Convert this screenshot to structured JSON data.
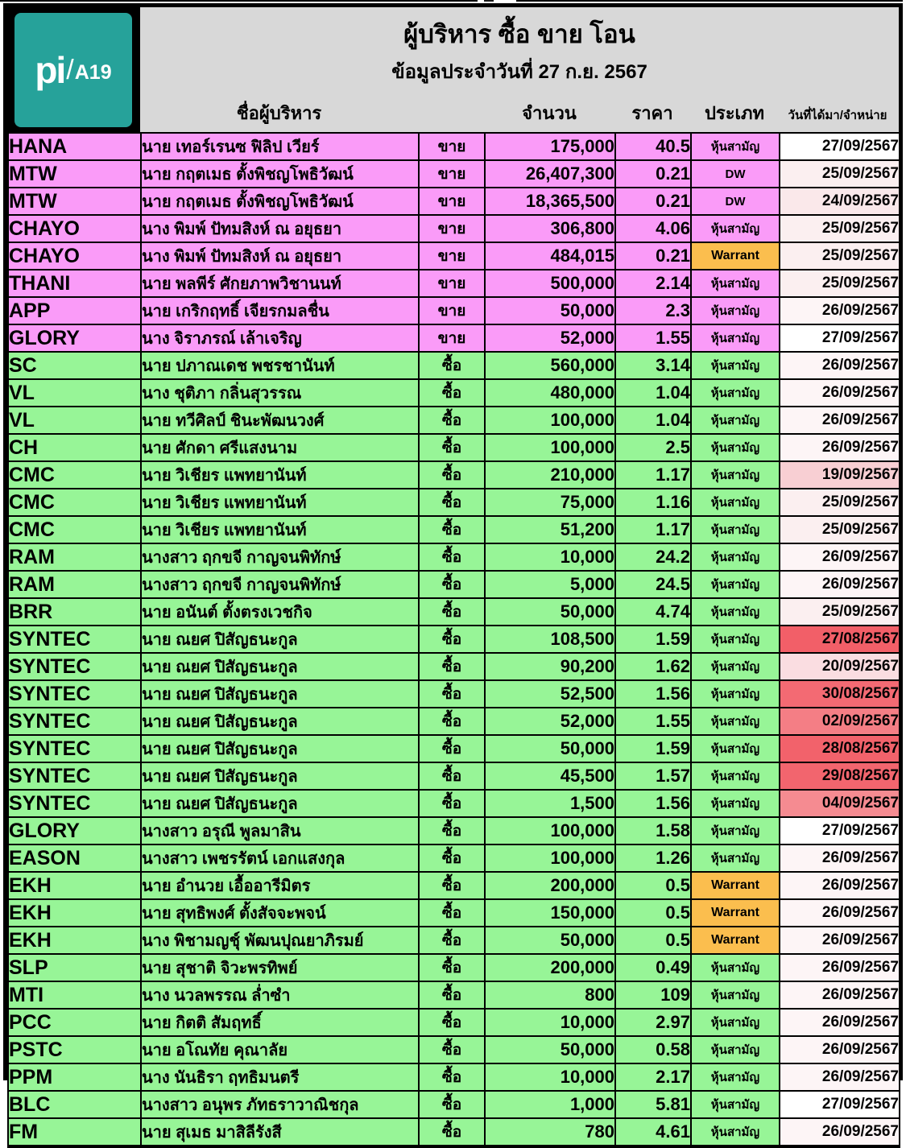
{
  "logo": {
    "brand": "pi",
    "slash": "/",
    "suffix": "A19",
    "bg_color": "#26A29A"
  },
  "header": {
    "title": "ผู้บริหาร ซื้อ ขาย โอน",
    "subtitle": "ข้อมูลประจำวันที่ 27 ก.ย. 2567",
    "columns": {
      "name": "ชื่อผู้บริหาร",
      "amount": "จำนวน",
      "price": "ราคา",
      "type": "ประเภท",
      "date": "วันที่ได้มา/จำหน่าย"
    }
  },
  "colors": {
    "sell_row": "#FA9BF8",
    "buy_row": "#97F597",
    "warrant_bg": "#FBBE4E",
    "header_bg": "#D8D8D8",
    "logo_teal": "#26A29A"
  },
  "rows": [
    {
      "symbol": "HANA",
      "name": "นาย เทอร์เรนซ ฟิลิป เวียร์",
      "action": "ขาย",
      "side": "sell",
      "amount": "175,000",
      "price": "40.5",
      "type": "หุ้นสามัญ",
      "date": "27/09/2567",
      "date_bg": "#FFFFFF"
    },
    {
      "symbol": "MTW",
      "name": "นาย กฤตเมธ ตั้งพิชญโพธิวัฒน์",
      "action": "ขาย",
      "side": "sell",
      "amount": "26,407,300",
      "price": "0.21",
      "type": "DW",
      "date": "25/09/2567",
      "date_bg": "#FBEFF0"
    },
    {
      "symbol": "MTW",
      "name": "นาย กฤตเมธ ตั้งพิชญโพธิวัฒน์",
      "action": "ขาย",
      "side": "sell",
      "amount": "18,365,500",
      "price": "0.21",
      "type": "DW",
      "date": "24/09/2567",
      "date_bg": "#FAE8EA"
    },
    {
      "symbol": "CHAYO",
      "name": "นาง พิมพ์ ปัทมสิงห์ ณ อยุธยา",
      "action": "ขาย",
      "side": "sell",
      "amount": "306,800",
      "price": "4.06",
      "type": "หุ้นสามัญ",
      "date": "25/09/2567",
      "date_bg": "#FBEFF0"
    },
    {
      "symbol": "CHAYO",
      "name": "นาง พิมพ์ ปัทมสิงห์ ณ อยุธยา",
      "action": "ขาย",
      "side": "sell",
      "amount": "484,015",
      "price": "0.21",
      "type": "Warrant",
      "date": "25/09/2567",
      "date_bg": "#FBEFF0"
    },
    {
      "symbol": "THANI",
      "name": "นาย พลพีร์ ศักยภาพวิชานนท์",
      "action": "ขาย",
      "side": "sell",
      "amount": "500,000",
      "price": "2.14",
      "type": "หุ้นสามัญ",
      "date": "25/09/2567",
      "date_bg": "#FBEFF0"
    },
    {
      "symbol": "APP",
      "name": "นาย เกริกฤทธิ์ เจียรกมลชื่น",
      "action": "ขาย",
      "side": "sell",
      "amount": "50,000",
      "price": "2.3",
      "type": "หุ้นสามัญ",
      "date": "26/09/2567",
      "date_bg": "#FDF5F6"
    },
    {
      "symbol": "GLORY",
      "name": "นาง จิราภรณ์ เล้าเจริญ",
      "action": "ขาย",
      "side": "sell",
      "amount": "52,000",
      "price": "1.55",
      "type": "หุ้นสามัญ",
      "date": "27/09/2567",
      "date_bg": "#FFFFFF"
    },
    {
      "symbol": "SC",
      "name": "นาย ปภาณเดช พชรชานันท์",
      "action": "ซื้อ",
      "side": "buy",
      "amount": "560,000",
      "price": "3.14",
      "type": "หุ้นสามัญ",
      "date": "26/09/2567",
      "date_bg": "#FDF5F6"
    },
    {
      "symbol": "VL",
      "name": "นาง ชุติภา กลิ่นสุวรรณ",
      "action": "ซื้อ",
      "side": "buy",
      "amount": "480,000",
      "price": "1.04",
      "type": "หุ้นสามัญ",
      "date": "26/09/2567",
      "date_bg": "#FDF5F6"
    },
    {
      "symbol": "VL",
      "name": "นาย ทวีศิลป์ ชินะพัฒนวงศ์",
      "action": "ซื้อ",
      "side": "buy",
      "amount": "100,000",
      "price": "1.04",
      "type": "หุ้นสามัญ",
      "date": "26/09/2567",
      "date_bg": "#FDF5F6"
    },
    {
      "symbol": "CH",
      "name": "นาย ศักดา ศรีแสงนาม",
      "action": "ซื้อ",
      "side": "buy",
      "amount": "100,000",
      "price": "2.5",
      "type": "หุ้นสามัญ",
      "date": "26/09/2567",
      "date_bg": "#FDF5F6"
    },
    {
      "symbol": "CMC",
      "name": "นาย วิเชียร แพทยานันท์",
      "action": "ซื้อ",
      "side": "buy",
      "amount": "210,000",
      "price": "1.17",
      "type": "หุ้นสามัญ",
      "date": "19/09/2567",
      "date_bg": "#F8CFD3"
    },
    {
      "symbol": "CMC",
      "name": "นาย วิเชียร แพทยานันท์",
      "action": "ซื้อ",
      "side": "buy",
      "amount": "75,000",
      "price": "1.16",
      "type": "หุ้นสามัญ",
      "date": "25/09/2567",
      "date_bg": "#FBEFF0"
    },
    {
      "symbol": "CMC",
      "name": "นาย วิเชียร แพทยานันท์",
      "action": "ซื้อ",
      "side": "buy",
      "amount": "51,200",
      "price": "1.17",
      "type": "หุ้นสามัญ",
      "date": "25/09/2567",
      "date_bg": "#FBEFF0"
    },
    {
      "symbol": "RAM",
      "name": "นางสาว ฤกขจี กาญจนพิทักษ์",
      "action": "ซื้อ",
      "side": "buy",
      "amount": "10,000",
      "price": "24.2",
      "type": "หุ้นสามัญ",
      "date": "26/09/2567",
      "date_bg": "#FDF5F6"
    },
    {
      "symbol": "RAM",
      "name": "นางสาว ฤกขจี กาญจนพิทักษ์",
      "action": "ซื้อ",
      "side": "buy",
      "amount": "5,000",
      "price": "24.5",
      "type": "หุ้นสามัญ",
      "date": "26/09/2567",
      "date_bg": "#FDF5F6"
    },
    {
      "symbol": "BRR",
      "name": "นาย อนันต์ ตั้งตรงเวชกิจ",
      "action": "ซื้อ",
      "side": "buy",
      "amount": "50,000",
      "price": "4.74",
      "type": "หุ้นสามัญ",
      "date": "25/09/2567",
      "date_bg": "#FBEFF0"
    },
    {
      "symbol": "SYNTEC",
      "name": "นาย ณยศ ปิสัญธนะกูล",
      "action": "ซื้อ",
      "side": "buy",
      "amount": "108,500",
      "price": "1.59",
      "type": "หุ้นสามัญ",
      "date": "27/08/2567",
      "date_bg": "#F25F68"
    },
    {
      "symbol": "SYNTEC",
      "name": "นาย ณยศ ปิสัญธนะกูล",
      "action": "ซื้อ",
      "side": "buy",
      "amount": "90,200",
      "price": "1.62",
      "type": "หุ้นสามัญ",
      "date": "20/09/2567",
      "date_bg": "#FADDE1"
    },
    {
      "symbol": "SYNTEC",
      "name": "นาย ณยศ ปิสัญธนะกูล",
      "action": "ซื้อ",
      "side": "buy",
      "amount": "52,500",
      "price": "1.56",
      "type": "หุ้นสามัญ",
      "date": "30/08/2567",
      "date_bg": "#F36A73"
    },
    {
      "symbol": "SYNTEC",
      "name": "นาย ณยศ ปิสัญธนะกูล",
      "action": "ซื้อ",
      "side": "buy",
      "amount": "52,000",
      "price": "1.55",
      "type": "หุ้นสามัญ",
      "date": "02/09/2567",
      "date_bg": "#F47E85"
    },
    {
      "symbol": "SYNTEC",
      "name": "นาย ณยศ ปิสัญธนะกูล",
      "action": "ซื้อ",
      "side": "buy",
      "amount": "50,000",
      "price": "1.59",
      "type": "หุ้นสามัญ",
      "date": "28/08/2567",
      "date_bg": "#F2626B"
    },
    {
      "symbol": "SYNTEC",
      "name": "นาย ณยศ ปิสัญธนะกูล",
      "action": "ซื้อ",
      "side": "buy",
      "amount": "45,500",
      "price": "1.57",
      "type": "หุ้นสามัญ",
      "date": "29/08/2567",
      "date_bg": "#F2656E"
    },
    {
      "symbol": "SYNTEC",
      "name": "นาย ณยศ ปิสัญธนะกูล",
      "action": "ซื้อ",
      "side": "buy",
      "amount": "1,500",
      "price": "1.56",
      "type": "หุ้นสามัญ",
      "date": "04/09/2567",
      "date_bg": "#F58B91"
    },
    {
      "symbol": "GLORY",
      "name": "นางสาว อรุณี พูลมาสิน",
      "action": "ซื้อ",
      "side": "buy",
      "amount": "100,000",
      "price": "1.58",
      "type": "หุ้นสามัญ",
      "date": "27/09/2567",
      "date_bg": "#FFFFFF"
    },
    {
      "symbol": "EASON",
      "name": "นางสาว เพชรรัตน์ เอกแสงกุล",
      "action": "ซื้อ",
      "side": "buy",
      "amount": "100,000",
      "price": "1.26",
      "type": "หุ้นสามัญ",
      "date": "26/09/2567",
      "date_bg": "#FDF5F6"
    },
    {
      "symbol": "EKH",
      "name": "นาย อำนวย เอื้ออารีมิตร",
      "action": "ซื้อ",
      "side": "buy",
      "amount": "200,000",
      "price": "0.5",
      "type": "Warrant",
      "date": "26/09/2567",
      "date_bg": "#FDF5F6"
    },
    {
      "symbol": "EKH",
      "name": "นาย สุทธิพงศ์ ตั้งสัจจะพจน์",
      "action": "ซื้อ",
      "side": "buy",
      "amount": "150,000",
      "price": "0.5",
      "type": "Warrant",
      "date": "26/09/2567",
      "date_bg": "#FDF5F6"
    },
    {
      "symbol": "EKH",
      "name": "นาง พิชามญชุ์ พัฒนปุณยาภิรมย์",
      "action": "ซื้อ",
      "side": "buy",
      "amount": "50,000",
      "price": "0.5",
      "type": "Warrant",
      "date": "26/09/2567",
      "date_bg": "#FDF5F6"
    },
    {
      "symbol": "SLP",
      "name": "นาย สุชาติ จิวะพรทิพย์",
      "action": "ซื้อ",
      "side": "buy",
      "amount": "200,000",
      "price": "0.49",
      "type": "หุ้นสามัญ",
      "date": "26/09/2567",
      "date_bg": "#FDF5F6"
    },
    {
      "symbol": "MTI",
      "name": "นาง นวลพรรณ ล่ำซำ",
      "action": "ซื้อ",
      "side": "buy",
      "amount": "800",
      "price": "109",
      "type": "หุ้นสามัญ",
      "date": "26/09/2567",
      "date_bg": "#FDF5F6"
    },
    {
      "symbol": "PCC",
      "name": "นาย กิตติ สัมฤทธิ์",
      "action": "ซื้อ",
      "side": "buy",
      "amount": "10,000",
      "price": "2.97",
      "type": "หุ้นสามัญ",
      "date": "26/09/2567",
      "date_bg": "#FDF5F6"
    },
    {
      "symbol": "PSTC",
      "name": "นาย อโณทัย คุณาลัย",
      "action": "ซื้อ",
      "side": "buy",
      "amount": "50,000",
      "price": "0.58",
      "type": "หุ้นสามัญ",
      "date": "26/09/2567",
      "date_bg": "#FDF5F6"
    },
    {
      "symbol": "PPM",
      "name": "นาง นันธิรา ฤทธิมนตรี",
      "action": "ซื้อ",
      "side": "buy",
      "amount": "10,000",
      "price": "2.17",
      "type": "หุ้นสามัญ",
      "date": "26/09/2567",
      "date_bg": "#FDF5F6"
    },
    {
      "symbol": "BLC",
      "name": "นางสาว อนุพร ภัทธราวาณิชกุล",
      "action": "ซื้อ",
      "side": "buy",
      "amount": "1,000",
      "price": "5.81",
      "type": "หุ้นสามัญ",
      "date": "27/09/2567",
      "date_bg": "#FFFFFF"
    },
    {
      "symbol": "FM",
      "name": "นาย สุเมธ มาสิลีรังสี",
      "action": "ซื้อ",
      "side": "buy",
      "amount": "780",
      "price": "4.61",
      "type": "หุ้นสามัญ",
      "date": "26/09/2567",
      "date_bg": "#FDF5F6"
    },
    {
      "symbol": "",
      "name": "",
      "action": "",
      "side": "none",
      "amount": "",
      "price": "",
      "type": "",
      "date": "",
      "date_bg": "#FFFFFF"
    }
  ]
}
